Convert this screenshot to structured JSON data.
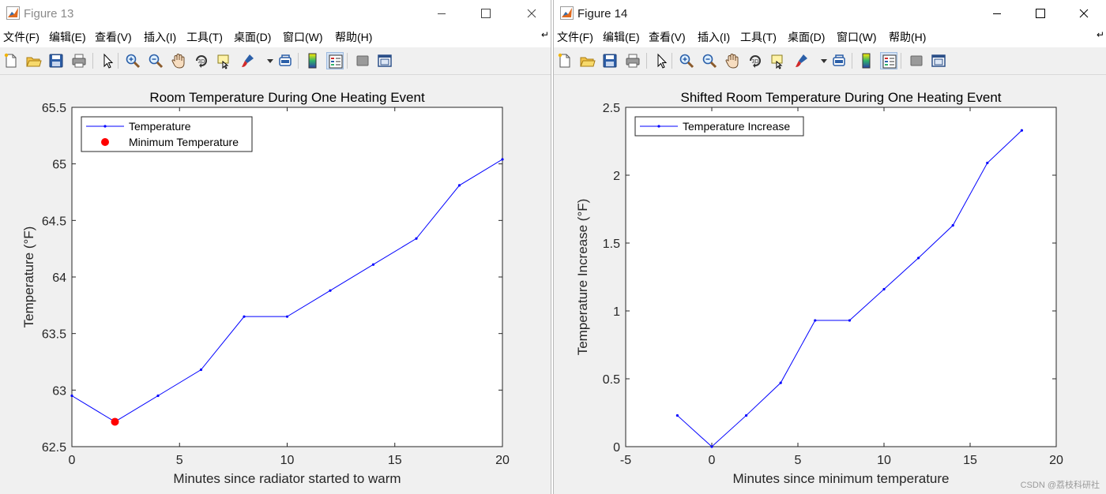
{
  "windows": [
    {
      "title": "Figure 13",
      "menu": [
        "文件(F)",
        "编辑(E)",
        "查看(V)",
        "插入(I)",
        "工具(T)",
        "桌面(D)",
        "窗口(W)",
        "帮助(H)"
      ],
      "toolbar_icons": [
        "new-figure-icon",
        "open-file-icon",
        "save-icon",
        "print-icon",
        "select-arrow-icon",
        "zoom-in-icon",
        "zoom-out-icon",
        "pan-hand-icon",
        "rotate-3d-icon",
        "data-cursor-icon",
        "brush-icon",
        "brush-menu-icon",
        "link-plot-icon",
        "colorbar-icon",
        "legend-icon",
        "hide-plot-tools-icon",
        "show-plot-tools-icon"
      ],
      "window_controls": [
        "minimize-icon",
        "maximize-icon",
        "close-icon"
      ]
    },
    {
      "title": "Figure 14",
      "menu": [
        "文件(F)",
        "编辑(E)",
        "查看(V)",
        "插入(I)",
        "工具(T)",
        "桌面(D)",
        "窗口(W)",
        "帮助(H)"
      ],
      "toolbar_icons": [
        "new-figure-icon",
        "open-file-icon",
        "save-icon",
        "print-icon",
        "select-arrow-icon",
        "zoom-in-icon",
        "zoom-out-icon",
        "pan-hand-icon",
        "rotate-3d-icon",
        "data-cursor-icon",
        "brush-icon",
        "brush-menu-icon",
        "link-plot-icon",
        "colorbar-icon",
        "legend-icon",
        "hide-plot-tools-icon",
        "show-plot-tools-icon"
      ],
      "window_controls": [
        "minimize-icon",
        "maximize-icon",
        "close-icon"
      ]
    }
  ],
  "colors": {
    "series_line": "#0000ff",
    "minimum_marker": "#ff0000",
    "legend_active_button": "#d4e3f5",
    "figure_background": "#f0f0f0",
    "axes_background": "#ffffff"
  },
  "chart_data": [
    {
      "type": "line",
      "title": "Room Temperature During One Heating Event",
      "xlabel": "Minutes since radiator started to warm",
      "ylabel": "Temperature (°F)",
      "xlim": [
        0,
        20
      ],
      "ylim": [
        62.5,
        65.5
      ],
      "xticks": [
        0,
        5,
        10,
        15,
        20
      ],
      "yticks": [
        62.5,
        63,
        63.5,
        64,
        64.5,
        65,
        65.5
      ],
      "grid": false,
      "legend": "top-left",
      "series": [
        {
          "name": "Temperature",
          "x": [
            0,
            2,
            4,
            6,
            8,
            10,
            12,
            14,
            16,
            18,
            20
          ],
          "y": [
            62.95,
            62.72,
            62.95,
            63.18,
            63.65,
            63.65,
            63.88,
            64.11,
            64.34,
            64.81,
            65.04
          ]
        },
        {
          "name": "Minimum Temperature",
          "x": [
            2
          ],
          "y": [
            62.72
          ],
          "marker": "filled-circle"
        }
      ]
    },
    {
      "type": "line",
      "title": "Shifted Room Temperature During One Heating Event",
      "xlabel": "Minutes since minimum temperature",
      "ylabel": "Temperature Increase (°F)",
      "xlim": [
        -5,
        20
      ],
      "ylim": [
        0,
        2.5
      ],
      "xticks": [
        -5,
        0,
        5,
        10,
        15,
        20
      ],
      "yticks": [
        0,
        0.5,
        1,
        1.5,
        2,
        2.5
      ],
      "grid": false,
      "legend": "top-left",
      "series": [
        {
          "name": "Temperature Increase",
          "x": [
            -2,
            0,
            2,
            4,
            6,
            8,
            10,
            12,
            14,
            16,
            18
          ],
          "y": [
            0.23,
            0.0,
            0.23,
            0.47,
            0.93,
            0.93,
            1.16,
            1.39,
            1.63,
            2.09,
            2.33
          ]
        }
      ]
    }
  ],
  "watermark": "CSDN @荔枝科研社"
}
